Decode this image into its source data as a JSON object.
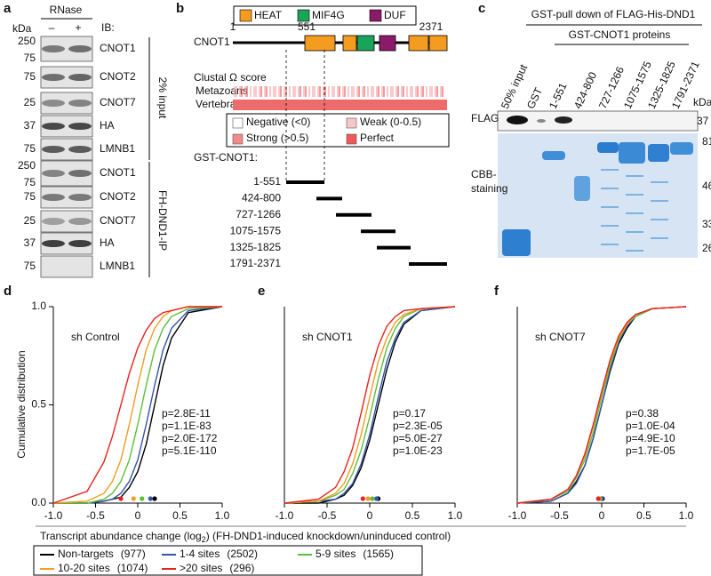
{
  "panel_a": {
    "label": "a",
    "treatment": "RNase",
    "minus": "–",
    "plus": "+",
    "ib": "IB:",
    "kda": "kDa",
    "input_group": "2% input",
    "ip_group": "FH-DND1-IP",
    "input_blots": [
      {
        "markers": [
          "250",
          "75"
        ],
        "target": "CNOT1"
      },
      {
        "markers": [
          "75"
        ],
        "target": "CNOT2"
      },
      {
        "markers": [
          "25"
        ],
        "target": "CNOT7"
      },
      {
        "markers": [
          "37"
        ],
        "target": "HA"
      },
      {
        "markers": [
          "75"
        ],
        "target": "LMNB1"
      }
    ],
    "ip_blots": [
      {
        "markers": [
          "250",
          "75"
        ],
        "target": "CNOT1"
      },
      {
        "markers": [
          "75"
        ],
        "target": "CNOT2"
      },
      {
        "markers": [
          "25"
        ],
        "target": "CNOT7"
      },
      {
        "markers": [
          "37"
        ],
        "target": "HA"
      },
      {
        "markers": [
          "75"
        ],
        "target": "LMNB1"
      }
    ]
  },
  "panel_b": {
    "label": "b",
    "domains": [
      {
        "name": "HEAT",
        "color": "#f39c1f"
      },
      {
        "name": "MIF4G",
        "color": "#1aa35a"
      },
      {
        "name": "DUF",
        "color": "#8b1a6b"
      }
    ],
    "protein": "CNOT1",
    "start": "1",
    "mid": "551",
    "end": "2371",
    "clustal": "Clustal  Ω score",
    "metazoans": "Metazoans",
    "vertebrates": "Vertebrates",
    "score_legend": [
      {
        "text": "Negative (<0)",
        "color": "#ffffff"
      },
      {
        "text": "Weak (0-0.5)",
        "color": "#f7c6c9"
      },
      {
        "text": "Strong (>0.5)",
        "color": "#f08c8c"
      },
      {
        "text": "Perfect",
        "color": "#ee5a5a"
      }
    ],
    "construct_title": "GST-CNOT1:",
    "constructs": [
      "1-551",
      "424-800",
      "727-1266",
      "1075-1575",
      "1325-1825",
      "1791-2371"
    ]
  },
  "panel_c": {
    "label": "c",
    "title": "GST-pull down of FLAG-His-DND1",
    "subtitle": "GST-CNOT1 proteins",
    "lanes": [
      "50% input",
      "GST",
      "1-551",
      "424-800",
      "727-1266",
      "1075-1575",
      "1325-1825",
      "1791-2371"
    ],
    "flag": "FLAG",
    "cbb": [
      "CBB-",
      "staining"
    ],
    "kda": "kDa",
    "flag_marker": "37",
    "markers": [
      "81",
      "46",
      "33",
      "26"
    ]
  },
  "y_label": "Cumulative distribution",
  "x_label": [
    "Transcript abundance change (log",
    "2",
    ") (FH-DND1-induced knockdown/uninduced control)"
  ],
  "legend": [
    {
      "name": "Non-targets",
      "count": "(977)",
      "color": "#000000"
    },
    {
      "name": "1-4 sites",
      "count": "(2502)",
      "color": "#3355aa"
    },
    {
      "name": "5-9 sites",
      "count": "(1565)",
      "color": "#5cbf3b"
    },
    {
      "name": "10-20 sites",
      "count": "(1074)",
      "color": "#f39c1f"
    },
    {
      "name": ">20 sites",
      "count": "(296)",
      "color": "#e8231f"
    }
  ],
  "chart_data": [
    {
      "type": "line",
      "panel": "d",
      "title": "sh Control",
      "xlim": [
        -1,
        1
      ],
      "ylim": [
        0,
        1
      ],
      "xticks": [
        {
          "value": -1,
          "label": "-1.0"
        },
        -0.5,
        0,
        0.5,
        {
          "value": 1,
          "label": "1.0"
        }
      ],
      "yticks": [
        {
          "value": 0,
          "label": "0.0"
        },
        0.5,
        {
          "value": 1,
          "label": "1.0"
        }
      ],
      "x": [
        -1,
        -0.6,
        -0.4,
        -0.3,
        -0.2,
        -0.1,
        0,
        0.1,
        0.2,
        0.3,
        0.4,
        0.6,
        1
      ],
      "series": [
        {
          "values": [
            0,
            0,
            0.01,
            0.02,
            0.03,
            0.08,
            0.16,
            0.3,
            0.5,
            0.7,
            0.84,
            0.97,
            1
          ],
          "median": 0.2
        },
        {
          "values": [
            0,
            0,
            0.01,
            0.02,
            0.05,
            0.11,
            0.22,
            0.4,
            0.6,
            0.78,
            0.89,
            0.98,
            1
          ],
          "median": 0.15
        },
        {
          "values": [
            0,
            0,
            0.02,
            0.05,
            0.11,
            0.22,
            0.4,
            0.6,
            0.78,
            0.89,
            0.95,
            0.99,
            1
          ],
          "median": 0.05
        },
        {
          "values": [
            0,
            0.01,
            0.05,
            0.11,
            0.22,
            0.4,
            0.6,
            0.78,
            0.89,
            0.95,
            0.98,
            1,
            1
          ],
          "median": -0.05
        },
        {
          "values": [
            0,
            0.06,
            0.21,
            0.34,
            0.5,
            0.66,
            0.79,
            0.88,
            0.94,
            0.97,
            0.98,
            1,
            1
          ],
          "median": -0.2
        }
      ],
      "p_values": [
        "p=2.8E-11",
        "p=1.1E-83",
        "p=2.0E-172",
        "p=5.1E-110"
      ]
    },
    {
      "type": "line",
      "panel": "e",
      "title": "sh CNOT1",
      "xlim": [
        -1,
        1
      ],
      "ylim": [
        0,
        1
      ],
      "xticks": [
        {
          "value": -1,
          "label": "-1.0"
        },
        -0.5,
        0,
        0.5,
        {
          "value": 1,
          "label": "1.0"
        }
      ],
      "x": [
        -1,
        -0.6,
        -0.4,
        -0.3,
        -0.2,
        -0.1,
        0,
        0.1,
        0.2,
        0.3,
        0.4,
        0.6,
        1
      ],
      "series": [
        {
          "values": [
            0,
            0,
            0.02,
            0.04,
            0.09,
            0.18,
            0.32,
            0.5,
            0.68,
            0.82,
            0.91,
            0.98,
            1
          ],
          "median": 0.1
        },
        {
          "values": [
            0,
            0.01,
            0.02,
            0.05,
            0.1,
            0.2,
            0.35,
            0.54,
            0.72,
            0.84,
            0.92,
            0.98,
            1
          ],
          "median": 0.08
        },
        {
          "values": [
            0,
            0.01,
            0.04,
            0.07,
            0.15,
            0.27,
            0.44,
            0.63,
            0.79,
            0.89,
            0.95,
            0.99,
            1
          ],
          "median": 0.03
        },
        {
          "values": [
            0,
            0.01,
            0.05,
            0.1,
            0.2,
            0.35,
            0.54,
            0.72,
            0.84,
            0.92,
            0.96,
            0.99,
            1
          ],
          "median": -0.02
        },
        {
          "values": [
            0,
            0.02,
            0.08,
            0.16,
            0.28,
            0.46,
            0.65,
            0.8,
            0.9,
            0.95,
            0.98,
            0.99,
            1
          ],
          "median": -0.08
        }
      ],
      "p_values": [
        "p=0.17",
        "p=2.3E-05",
        "p=5.0E-27",
        "p=1.0E-23"
      ]
    },
    {
      "type": "line",
      "panel": "f",
      "title": "sh CNOT7",
      "xlim": [
        -1,
        1
      ],
      "ylim": [
        0,
        1
      ],
      "xticks": [
        {
          "value": -1,
          "label": "-1.0"
        },
        -0.5,
        0,
        0.5,
        {
          "value": 1,
          "label": "1.0"
        }
      ],
      "x": [
        -1,
        -0.6,
        -0.4,
        -0.3,
        -0.2,
        -0.1,
        0,
        0.1,
        0.2,
        0.3,
        0.4,
        0.6,
        1
      ],
      "series": [
        {
          "values": [
            0,
            0.01,
            0.05,
            0.11,
            0.19,
            0.33,
            0.5,
            0.67,
            0.81,
            0.89,
            0.95,
            0.99,
            1
          ],
          "median": 0.01
        },
        {
          "values": [
            0,
            0.01,
            0.05,
            0.1,
            0.19,
            0.33,
            0.5,
            0.68,
            0.82,
            0.9,
            0.95,
            0.99,
            1
          ],
          "median": 0
        },
        {
          "values": [
            0,
            0.02,
            0.06,
            0.13,
            0.22,
            0.36,
            0.54,
            0.7,
            0.83,
            0.91,
            0.95,
            0.99,
            1
          ],
          "median": -0.02
        },
        {
          "values": [
            0,
            0.02,
            0.07,
            0.14,
            0.24,
            0.39,
            0.56,
            0.72,
            0.84,
            0.91,
            0.96,
            0.99,
            1
          ],
          "median": -0.03
        },
        {
          "values": [
            0,
            0.02,
            0.07,
            0.14,
            0.25,
            0.4,
            0.57,
            0.73,
            0.85,
            0.92,
            0.96,
            0.99,
            1
          ],
          "median": -0.04
        }
      ],
      "p_values": [
        "p=0.38",
        "p=1.0E-04",
        "p=4.9E-10",
        "p=1.7E-05"
      ]
    }
  ]
}
